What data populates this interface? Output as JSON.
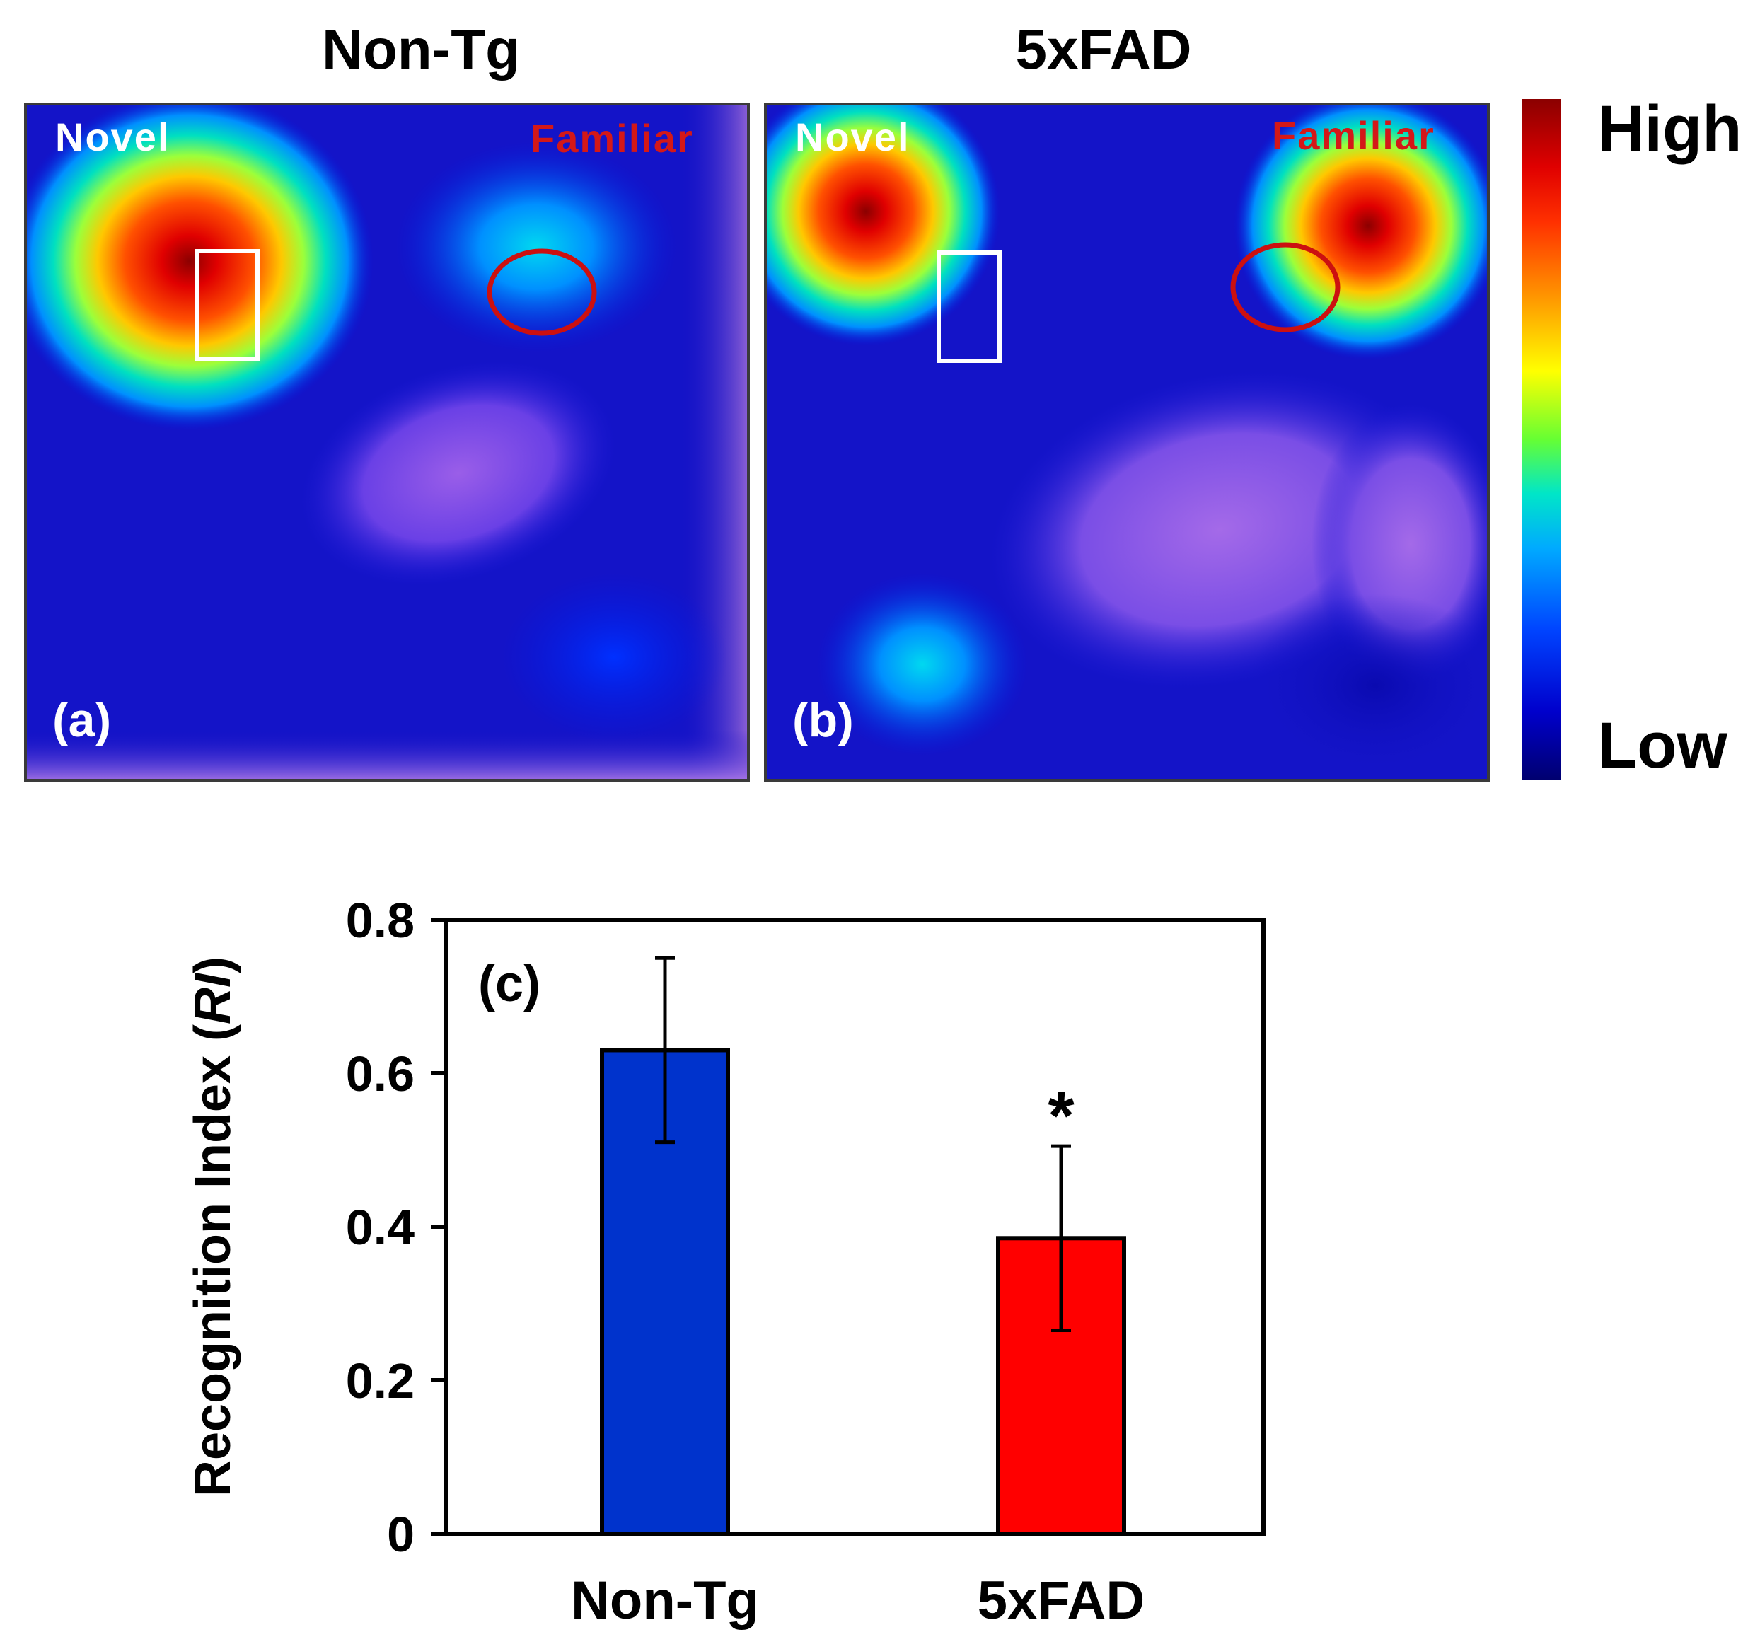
{
  "heatmaps": {
    "titles": [
      "Non-Tg",
      "5xFAD"
    ],
    "panel_a": {
      "tag": "(a)",
      "novel_label": "Novel",
      "familiar_label": "Familiar"
    },
    "panel_b": {
      "tag": "(b)",
      "novel_label": "Novel",
      "familiar_label": "Familiar"
    },
    "colorbar": {
      "high_label": "High",
      "low_label": "Low"
    },
    "colors": {
      "novel_marker": "#ffffff",
      "familiar_marker": "#cc1010"
    }
  },
  "chart_data": {
    "type": "bar",
    "panel_tag": "(c)",
    "categories": [
      "Non-Tg",
      "5xFAD"
    ],
    "values": [
      0.63,
      0.385
    ],
    "errors": [
      0.12,
      0.12
    ],
    "colors": [
      "#0033cc",
      "#ff0000"
    ],
    "significance": [
      "",
      "*"
    ],
    "title": "",
    "xlabel": "",
    "ylabel": "Recognition Index (RI)",
    "ylabel_plain": "Recognition Index (",
    "ylabel_italic": "RI",
    "ylabel_close": ")",
    "ylim": [
      0,
      0.8
    ],
    "yticks": [
      "0",
      "0.2",
      "0.4",
      "0.6",
      "0.8"
    ]
  }
}
